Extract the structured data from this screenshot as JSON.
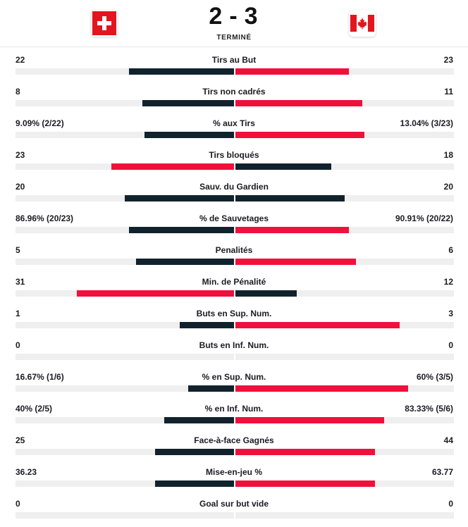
{
  "match": {
    "home_score": "2",
    "separator": "-",
    "away_score": "3",
    "status": "TERMINÉ",
    "home_flag_icon": "switzerland-flag-icon",
    "away_flag_icon": "canada-flag-icon"
  },
  "colors": {
    "home_bar_winner": "#f0103c",
    "away_bar_winner": "#f0103c",
    "loser_bar": "#11222d",
    "track": "#efefef"
  },
  "stats": [
    {
      "label": "Tirs au But",
      "home": "22",
      "away": "23",
      "home_ratio": 0.48,
      "away_ratio": 0.52,
      "leader": "away"
    },
    {
      "label": "Tirs non cadrés",
      "home": "8",
      "away": "11",
      "home_ratio": 0.42,
      "away_ratio": 0.58,
      "leader": "away"
    },
    {
      "label": "% aux Tirs",
      "home": "9.09% (2/22)",
      "away": "13.04% (3/23)",
      "home_ratio": 0.41,
      "away_ratio": 0.59,
      "leader": "away"
    },
    {
      "label": "Tirs bloqués",
      "home": "23",
      "away": "18",
      "home_ratio": 0.56,
      "away_ratio": 0.44,
      "leader": "home"
    },
    {
      "label": "Sauv. du Gardien",
      "home": "20",
      "away": "20",
      "home_ratio": 0.5,
      "away_ratio": 0.5,
      "leader": "none"
    },
    {
      "label": "% de Sauvetages",
      "home": "86.96% (20/23)",
      "away": "90.91% (20/22)",
      "home_ratio": 0.48,
      "away_ratio": 0.52,
      "leader": "away"
    },
    {
      "label": "Penalités",
      "home": "5",
      "away": "6",
      "home_ratio": 0.45,
      "away_ratio": 0.55,
      "leader": "away"
    },
    {
      "label": "Min. de Pénalité",
      "home": "31",
      "away": "12",
      "home_ratio": 0.72,
      "away_ratio": 0.28,
      "leader": "home"
    },
    {
      "label": "Buts en Sup. Num.",
      "home": "1",
      "away": "3",
      "home_ratio": 0.25,
      "away_ratio": 0.75,
      "leader": "away"
    },
    {
      "label": "Buts en Inf. Num.",
      "home": "0",
      "away": "0",
      "home_ratio": 0,
      "away_ratio": 0,
      "leader": "none"
    },
    {
      "label": "% en Sup. Num.",
      "home": "16.67% (1/6)",
      "away": "60% (3/5)",
      "home_ratio": 0.21,
      "away_ratio": 0.79,
      "leader": "away"
    },
    {
      "label": "% en Inf. Num.",
      "home": "40% (2/5)",
      "away": "83.33% (5/6)",
      "home_ratio": 0.32,
      "away_ratio": 0.68,
      "leader": "away"
    },
    {
      "label": "Face-à-face Gagnés",
      "home": "25",
      "away": "44",
      "home_ratio": 0.36,
      "away_ratio": 0.64,
      "leader": "away"
    },
    {
      "label": "Mise-en-jeu %",
      "home": "36.23",
      "away": "63.77",
      "home_ratio": 0.36,
      "away_ratio": 0.64,
      "leader": "away"
    },
    {
      "label": "Goal sur but vide",
      "home": "0",
      "away": "0",
      "home_ratio": 0,
      "away_ratio": 0,
      "leader": "none"
    }
  ]
}
